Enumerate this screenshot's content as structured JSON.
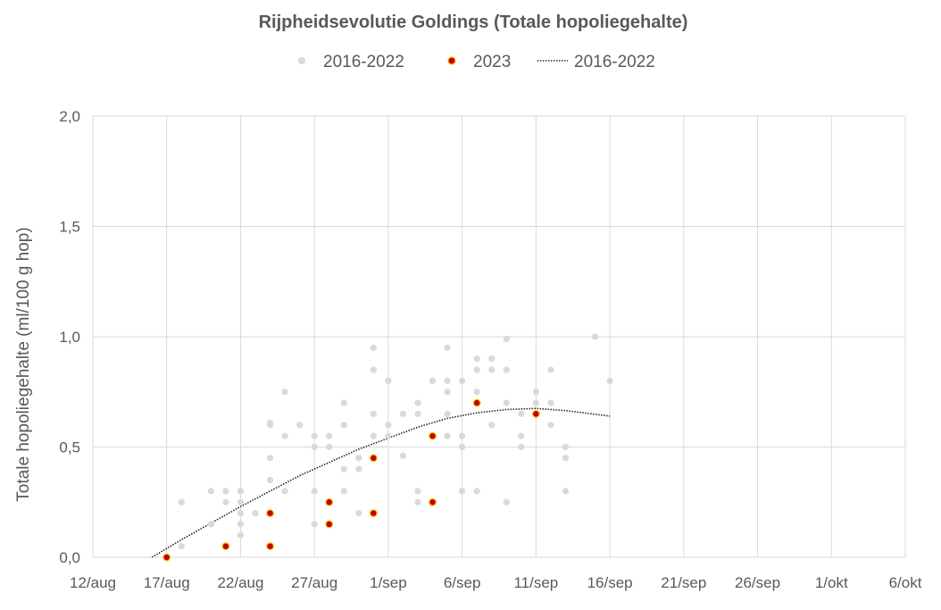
{
  "chart_data": {
    "type": "scatter",
    "title": "Rijpheidsevolutie Goldings (Totale hopoliegehalte)",
    "ylabel": "Totale hopoliegehalte (ml/100 g hop)",
    "xlabel": "",
    "x_unit": "date",
    "xlim": [
      "2023-08-12",
      "2023-10-06"
    ],
    "ylim": [
      0,
      2
    ],
    "grid": true,
    "legend_position": "top",
    "x_ticks": [
      {
        "value": "2023-08-12",
        "label": "12/aug"
      },
      {
        "value": "2023-08-17",
        "label": "17/aug"
      },
      {
        "value": "2023-08-22",
        "label": "22/aug"
      },
      {
        "value": "2023-08-27",
        "label": "27/aug"
      },
      {
        "value": "2023-09-01",
        "label": "1/sep"
      },
      {
        "value": "2023-09-06",
        "label": "6/sep"
      },
      {
        "value": "2023-09-11",
        "label": "11/sep"
      },
      {
        "value": "2023-09-16",
        "label": "16/sep"
      },
      {
        "value": "2023-09-21",
        "label": "21/sep"
      },
      {
        "value": "2023-09-26",
        "label": "26/sep"
      },
      {
        "value": "2023-10-01",
        "label": "1/okt"
      },
      {
        "value": "2023-10-06",
        "label": "6/okt"
      }
    ],
    "y_ticks": [
      {
        "value": 0,
        "label": "0,0"
      },
      {
        "value": 0.5,
        "label": "0,5"
      },
      {
        "value": 1.0,
        "label": "1,0"
      },
      {
        "value": 1.5,
        "label": "1,5"
      },
      {
        "value": 2.0,
        "label": "2,0"
      }
    ],
    "series": [
      {
        "name": "2016-2022",
        "kind": "scatter",
        "color": "#d9d9d9",
        "points": [
          [
            "2023-08-18",
            0.05
          ],
          [
            "2023-08-18",
            0.25
          ],
          [
            "2023-08-20",
            0.3
          ],
          [
            "2023-08-20",
            0.15
          ],
          [
            "2023-08-21",
            0.3
          ],
          [
            "2023-08-21",
            0.25
          ],
          [
            "2023-08-21",
            0.05
          ],
          [
            "2023-08-22",
            0.3
          ],
          [
            "2023-08-22",
            0.25
          ],
          [
            "2023-08-22",
            0.2
          ],
          [
            "2023-08-22",
            0.15
          ],
          [
            "2023-08-22",
            0.1
          ],
          [
            "2023-08-23",
            0.2
          ],
          [
            "2023-08-24",
            0.61
          ],
          [
            "2023-08-24",
            0.6
          ],
          [
            "2023-08-24",
            0.45
          ],
          [
            "2023-08-24",
            0.35
          ],
          [
            "2023-08-24",
            0.2
          ],
          [
            "2023-08-25",
            0.75
          ],
          [
            "2023-08-25",
            0.55
          ],
          [
            "2023-08-25",
            0.3
          ],
          [
            "2023-08-26",
            0.6
          ],
          [
            "2023-08-27",
            0.55
          ],
          [
            "2023-08-27",
            0.5
          ],
          [
            "2023-08-27",
            0.3
          ],
          [
            "2023-08-27",
            0.15
          ],
          [
            "2023-08-28",
            0.55
          ],
          [
            "2023-08-28",
            0.5
          ],
          [
            "2023-08-29",
            0.7
          ],
          [
            "2023-08-29",
            0.6
          ],
          [
            "2023-08-29",
            0.4
          ],
          [
            "2023-08-29",
            0.3
          ],
          [
            "2023-08-30",
            0.45
          ],
          [
            "2023-08-30",
            0.4
          ],
          [
            "2023-08-30",
            0.2
          ],
          [
            "2023-08-31",
            0.95
          ],
          [
            "2023-08-31",
            0.85
          ],
          [
            "2023-08-31",
            0.65
          ],
          [
            "2023-08-31",
            0.55
          ],
          [
            "2023-09-01",
            0.8
          ],
          [
            "2023-09-01",
            0.6
          ],
          [
            "2023-09-01",
            0.55
          ],
          [
            "2023-09-02",
            0.65
          ],
          [
            "2023-09-02",
            0.46
          ],
          [
            "2023-09-03",
            0.7
          ],
          [
            "2023-09-03",
            0.65
          ],
          [
            "2023-09-03",
            0.3
          ],
          [
            "2023-09-03",
            0.25
          ],
          [
            "2023-09-04",
            0.8
          ],
          [
            "2023-09-05",
            0.95
          ],
          [
            "2023-09-05",
            0.8
          ],
          [
            "2023-09-05",
            0.75
          ],
          [
            "2023-09-05",
            0.65
          ],
          [
            "2023-09-05",
            0.55
          ],
          [
            "2023-09-06",
            0.8
          ],
          [
            "2023-09-06",
            0.55
          ],
          [
            "2023-09-06",
            0.5
          ],
          [
            "2023-09-06",
            0.3
          ],
          [
            "2023-09-07",
            0.9
          ],
          [
            "2023-09-07",
            0.85
          ],
          [
            "2023-09-07",
            0.75
          ],
          [
            "2023-09-07",
            0.3
          ],
          [
            "2023-09-08",
            0.9
          ],
          [
            "2023-09-08",
            0.85
          ],
          [
            "2023-09-08",
            0.6
          ],
          [
            "2023-09-09",
            0.99
          ],
          [
            "2023-09-09",
            0.85
          ],
          [
            "2023-09-09",
            0.7
          ],
          [
            "2023-09-09",
            0.25
          ],
          [
            "2023-09-10",
            0.65
          ],
          [
            "2023-09-10",
            0.55
          ],
          [
            "2023-09-10",
            0.5
          ],
          [
            "2023-09-11",
            0.75
          ],
          [
            "2023-09-11",
            0.7
          ],
          [
            "2023-09-12",
            0.85
          ],
          [
            "2023-09-12",
            0.7
          ],
          [
            "2023-09-12",
            0.6
          ],
          [
            "2023-09-13",
            0.5
          ],
          [
            "2023-09-13",
            0.45
          ],
          [
            "2023-09-13",
            0.3
          ],
          [
            "2023-09-15",
            1.0
          ],
          [
            "2023-09-16",
            0.8
          ]
        ]
      },
      {
        "name": "2023",
        "kind": "scatter",
        "color": "#c00000",
        "edge_color": "#ffc000",
        "points": [
          [
            "2023-08-17",
            0.0
          ],
          [
            "2023-08-21",
            0.05
          ],
          [
            "2023-08-24",
            0.2
          ],
          [
            "2023-08-24",
            0.05
          ],
          [
            "2023-08-28",
            0.25
          ],
          [
            "2023-08-28",
            0.15
          ],
          [
            "2023-08-31",
            0.45
          ],
          [
            "2023-08-31",
            0.2
          ],
          [
            "2023-09-04",
            0.55
          ],
          [
            "2023-09-04",
            0.25
          ],
          [
            "2023-09-07",
            0.7
          ],
          [
            "2023-09-11",
            0.65
          ]
        ]
      },
      {
        "name": "2016-2022",
        "kind": "trendline",
        "style": "dotted",
        "color": "#262626",
        "points": [
          [
            "2023-08-16",
            0.0
          ],
          [
            "2023-08-18",
            0.08
          ],
          [
            "2023-08-20",
            0.155
          ],
          [
            "2023-08-22",
            0.23
          ],
          [
            "2023-08-24",
            0.3
          ],
          [
            "2023-08-26",
            0.37
          ],
          [
            "2023-08-28",
            0.43
          ],
          [
            "2023-08-30",
            0.49
          ],
          [
            "2023-09-01",
            0.54
          ],
          [
            "2023-09-03",
            0.59
          ],
          [
            "2023-09-05",
            0.63
          ],
          [
            "2023-09-07",
            0.655
          ],
          [
            "2023-09-09",
            0.67
          ],
          [
            "2023-09-11",
            0.675
          ],
          [
            "2023-09-13",
            0.665
          ],
          [
            "2023-09-16",
            0.64
          ]
        ]
      }
    ]
  }
}
